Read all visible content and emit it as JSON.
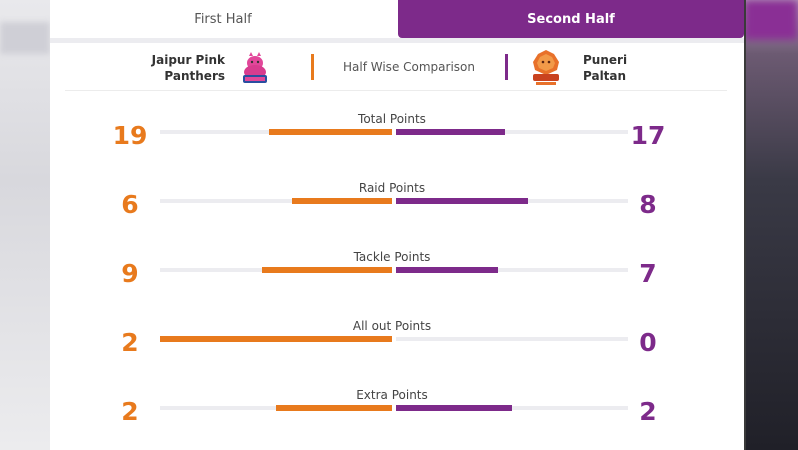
{
  "tabs": [
    {
      "label": "First Half",
      "active": false
    },
    {
      "label": "Second Half",
      "active": true
    }
  ],
  "header": {
    "team_left": {
      "name_line1": "Jaipur Pink",
      "name_line2": "Panthers",
      "logo_icon": "jaipur-pink-panthers-logo-icon",
      "color": "#e87a1d"
    },
    "comparison_label": "Half Wise Comparison",
    "team_right": {
      "name_line1": "Puneri",
      "name_line2": "Paltan",
      "logo_icon": "puneri-paltan-logo-icon",
      "color": "#7d2a8a"
    }
  },
  "stats": [
    {
      "label": "Total Points",
      "left": "19",
      "right": "17",
      "left_fill": 0.53,
      "right_fill": 0.47
    },
    {
      "label": "Raid Points",
      "left": "6",
      "right": "8",
      "left_fill": 0.43,
      "right_fill": 0.57
    },
    {
      "label": "Tackle Points",
      "left": "9",
      "right": "7",
      "left_fill": 0.56,
      "right_fill": 0.44
    },
    {
      "label": "All out Points",
      "left": "2",
      "right": "0",
      "left_fill": 1.0,
      "right_fill": 0.0
    },
    {
      "label": "Extra Points",
      "left": "2",
      "right": "2",
      "left_fill": 0.5,
      "right_fill": 0.5
    }
  ],
  "colors": {
    "accent": "#7d2a8a",
    "orange": "#e87a1d",
    "track": "#ececf0"
  }
}
